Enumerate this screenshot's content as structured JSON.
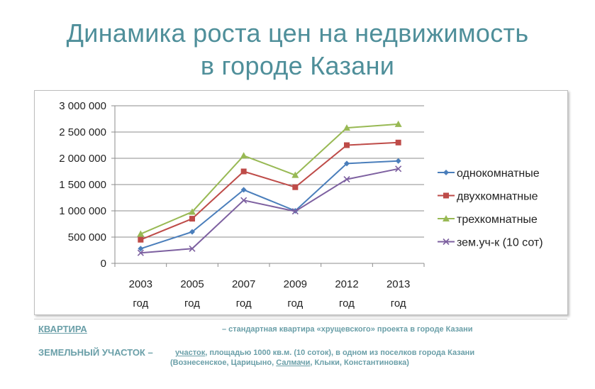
{
  "header": {
    "title_line1": "Динамика роста цен на недвижимость",
    "title_line2": "в городе Казани"
  },
  "notes": {
    "apartment_label": "КВАРТИРА",
    "apartment_text": "– стандартная квартира «хрущевского» проекта в городе Казани",
    "land_label": "ЗЕМЕЛЬНЫЙ УЧАСТОК –",
    "land_text_word1": "участок",
    "land_text_rest": ", площадью 1000 кв.м. (10 соток), в одном из поселков города Казани",
    "land_text_line2_open": "(Вознесенское, Царицыно, ",
    "land_text_line2_underlined": "Салмачи",
    "land_text_line2_close": ", Клыки, Константиновка)"
  },
  "chart_data": {
    "type": "line",
    "title": "Динамика роста цен на недвижимость в городе Казани",
    "categories": [
      "2003 год",
      "2005 год",
      "2007 год",
      "2009 год",
      "2012 год",
      "2013 год"
    ],
    "category_lines": [
      [
        "2003",
        "год"
      ],
      [
        "2005",
        "год"
      ],
      [
        "2007",
        "год"
      ],
      [
        "2009",
        "год"
      ],
      [
        "2012",
        "год"
      ],
      [
        "2013",
        "год"
      ]
    ],
    "ylim": [
      0,
      3000000
    ],
    "y_ticks": [
      0,
      500000,
      1000000,
      1500000,
      2000000,
      2500000,
      3000000
    ],
    "y_tick_labels": [
      "0",
      "500 000",
      "1 000 000",
      "1 500 000",
      "2 000 000",
      "2 500 000",
      "3 000 000"
    ],
    "grid": true,
    "legend_position": "right",
    "series": [
      {
        "name": "однокомнатные",
        "color": "#4a7ebb",
        "marker": "diamond",
        "values": [
          280000,
          600000,
          1400000,
          1000000,
          1900000,
          1950000
        ]
      },
      {
        "name": "двухкомнатные",
        "color": "#be4b48",
        "marker": "square",
        "values": [
          450000,
          850000,
          1750000,
          1450000,
          2250000,
          2300000
        ]
      },
      {
        "name": "трехкомнатные",
        "color": "#98b954",
        "marker": "triangle",
        "values": [
          560000,
          980000,
          2050000,
          1680000,
          2580000,
          2650000
        ]
      },
      {
        "name": "зем.уч-к (10 сот)",
        "color": "#7d60a0",
        "marker": "x",
        "values": [
          200000,
          280000,
          1200000,
          990000,
          1600000,
          1800000
        ]
      }
    ]
  }
}
